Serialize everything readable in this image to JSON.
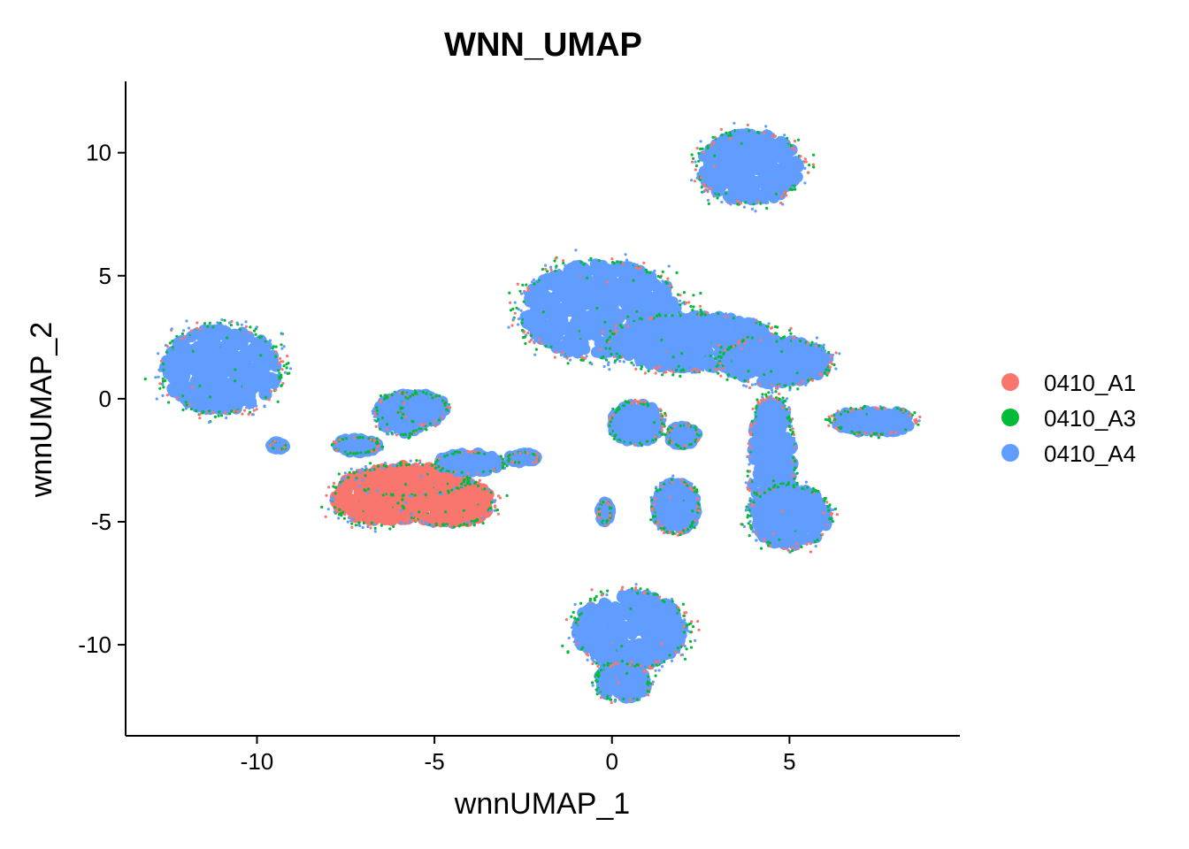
{
  "chart_data": {
    "type": "scatter",
    "title": "WNN_UMAP",
    "xlabel": "wnnUMAP_1",
    "ylabel": "wnnUMAP_2",
    "xlim": [
      -13.7,
      9.8
    ],
    "ylim": [
      -13.7,
      12.9
    ],
    "x_ticks": [
      -10,
      -5,
      0,
      5
    ],
    "y_ticks": [
      -10,
      -5,
      0,
      5,
      10
    ],
    "x_tick_labels": [
      "-10",
      "-5",
      "0",
      "5"
    ],
    "y_tick_labels": [
      "-10",
      "-5",
      "0",
      "5",
      "10"
    ],
    "grid": false,
    "legend_position": "right",
    "series": [
      {
        "name": "0410_A1",
        "color": "#F8766D"
      },
      {
        "name": "0410_A3",
        "color": "#00BA38"
      },
      {
        "name": "0410_A4",
        "color": "#619CFF"
      }
    ],
    "clusters": [
      {
        "cx": -11.0,
        "cy": 1.2,
        "rx": 1.6,
        "ry": 1.7,
        "dominant": "0410_A4"
      },
      {
        "cx": -6.5,
        "cy": -4.0,
        "rx": 1.3,
        "ry": 1.1,
        "dominant": "0410_A1"
      },
      {
        "cx": -4.6,
        "cy": -4.2,
        "rx": 1.2,
        "ry": 0.9,
        "dominant": "0410_A1"
      },
      {
        "cx": -5.6,
        "cy": -3.3,
        "rx": 1.4,
        "ry": 0.6,
        "dominant": "0410_A1"
      },
      {
        "cx": -5.9,
        "cy": -0.6,
        "rx": 0.7,
        "ry": 0.8,
        "dominant": "0410_A4"
      },
      {
        "cx": -5.3,
        "cy": -0.4,
        "rx": 0.6,
        "ry": 0.6,
        "dominant": "0410_A4"
      },
      {
        "cx": -4.0,
        "cy": -2.6,
        "rx": 0.9,
        "ry": 0.4,
        "dominant": "0410_A4"
      },
      {
        "cx": -7.2,
        "cy": -1.9,
        "rx": 0.6,
        "ry": 0.3,
        "dominant": "0410_A4"
      },
      {
        "cx": -9.4,
        "cy": -1.9,
        "rx": 0.2,
        "ry": 0.15,
        "dominant": "0410_A4"
      },
      {
        "cx": -0.3,
        "cy": 3.6,
        "rx": 2.2,
        "ry": 1.9,
        "dominant": "0410_A4"
      },
      {
        "cx": 2.3,
        "cy": 2.3,
        "rx": 2.3,
        "ry": 1.1,
        "dominant": "0410_A4"
      },
      {
        "cx": 4.6,
        "cy": 1.5,
        "rx": 1.5,
        "ry": 0.9,
        "dominant": "0410_A4"
      },
      {
        "cx": 4.5,
        "cy": -2.6,
        "rx": 0.6,
        "ry": 2.6,
        "dominant": "0410_A4"
      },
      {
        "cx": 5.0,
        "cy": -4.8,
        "rx": 1.1,
        "ry": 1.2,
        "dominant": "0410_A4"
      },
      {
        "cx": 0.7,
        "cy": -1.0,
        "rx": 0.7,
        "ry": 0.8,
        "dominant": "0410_A4"
      },
      {
        "cx": 2.0,
        "cy": -1.5,
        "rx": 0.4,
        "ry": 0.4,
        "dominant": "0410_A4"
      },
      {
        "cx": 1.8,
        "cy": -4.4,
        "rx": 0.6,
        "ry": 1.0,
        "dominant": "0410_A4"
      },
      {
        "cx": 7.4,
        "cy": -0.9,
        "rx": 1.1,
        "ry": 0.5,
        "dominant": "0410_A4"
      },
      {
        "cx": 3.9,
        "cy": 9.4,
        "rx": 1.4,
        "ry": 1.4,
        "dominant": "0410_A4"
      },
      {
        "cx": 0.5,
        "cy": -9.4,
        "rx": 1.5,
        "ry": 1.5,
        "dominant": "0410_A4"
      },
      {
        "cx": 0.3,
        "cy": -11.5,
        "rx": 0.7,
        "ry": 0.7,
        "dominant": "0410_A4"
      },
      {
        "cx": -2.5,
        "cy": -2.4,
        "rx": 0.4,
        "ry": 0.2,
        "dominant": "0410_A4"
      },
      {
        "cx": -0.2,
        "cy": -4.6,
        "rx": 0.15,
        "ry": 0.4,
        "dominant": "0410_A4"
      }
    ]
  }
}
